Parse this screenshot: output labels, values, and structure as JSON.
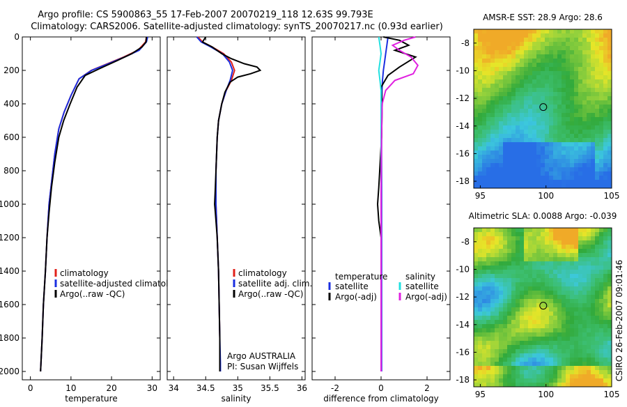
{
  "title_line1": "Argo profile: CS 5900863_55 17-Feb-2007 20070219_118 12.63S 99.793E",
  "title_line2": "Climatology: CARS2006. Satellite-adjusted climatology: synTS_20070217.nc (0.93d earlier)",
  "side_label": "CSIRO 26-Feb-2007 09:01:46",
  "colors": {
    "climatology": "#e0201a",
    "satellite": "#1a2ee0",
    "argo": "#000000",
    "sat_diff": "#22e0e0",
    "argo_sal_diff": "#e020e0"
  },
  "chart_data": [
    {
      "type": "line",
      "xlabel": "temperature",
      "ylabel": "",
      "xlim": [
        -2,
        32
      ],
      "ylim": [
        2050,
        0
      ],
      "xticks": [
        0,
        10,
        20,
        30
      ],
      "yticks": [
        0,
        200,
        400,
        600,
        800,
        1000,
        1200,
        1400,
        1600,
        1800,
        2000
      ],
      "legend": [
        "climatology",
        "satellite-adjusted climatology",
        "Argo(..raw -QC)"
      ],
      "legend_position": "bottom-right",
      "series": [
        {
          "name": "climatology",
          "color": "#e0201a",
          "x": [
            28.6,
            28.4,
            26.5,
            23,
            19,
            15,
            12,
            10,
            8.3,
            7,
            6,
            5.3,
            4.6,
            4.1,
            3.7,
            3.2,
            2.9,
            2.6,
            2.5
          ],
          "y": [
            0,
            30,
            80,
            120,
            160,
            200,
            250,
            350,
            450,
            550,
            700,
            850,
            1000,
            1200,
            1400,
            1600,
            1800,
            1950,
            2000
          ]
        },
        {
          "name": "satellite-adjusted climatology",
          "color": "#1a2ee0",
          "x": [
            28.9,
            28.6,
            26.8,
            23.2,
            19.2,
            15.1,
            12,
            10,
            8.3,
            7,
            6,
            5.3,
            4.6,
            4.1,
            3.7,
            3.2,
            2.9,
            2.6,
            2.5
          ],
          "y": [
            0,
            30,
            80,
            120,
            160,
            200,
            250,
            350,
            450,
            550,
            700,
            850,
            1000,
            1200,
            1400,
            1600,
            1800,
            1950,
            2000
          ]
        },
        {
          "name": "Argo(..raw -QC)",
          "color": "#000000",
          "x": [
            28.6,
            28.5,
            27.5,
            25,
            21.5,
            17,
            13.5,
            11.5,
            9.8,
            8.2,
            7,
            6,
            5.2,
            4.6,
            4.1,
            3.7,
            3.2,
            2.9,
            2.6,
            2.5
          ],
          "y": [
            0,
            30,
            60,
            100,
            140,
            190,
            230,
            300,
            400,
            500,
            600,
            750,
            900,
            1050,
            1200,
            1400,
            1600,
            1800,
            1950,
            2000
          ]
        }
      ]
    },
    {
      "type": "line",
      "xlabel": "salinity",
      "ylabel": "",
      "xlim": [
        33.9,
        36.05
      ],
      "ylim": [
        2050,
        0
      ],
      "xticks": [
        34,
        34.5,
        35,
        35.5,
        36
      ],
      "yticks": [
        0,
        200,
        400,
        600,
        800,
        1000,
        1200,
        1400,
        1600,
        1800,
        2000
      ],
      "legend": [
        "climatology",
        "satellite adj. clim.",
        "Argo(..raw -QC)"
      ],
      "legend_position": "bottom-right",
      "annotation": [
        "Argo AUSTRALIA",
        "PI: Susan Wijffels"
      ],
      "series": [
        {
          "name": "climatology",
          "color": "#e0201a",
          "x": [
            34.38,
            34.45,
            34.6,
            34.78,
            34.9,
            34.95,
            34.9,
            34.82,
            34.75,
            34.7,
            34.68,
            34.66,
            34.66,
            34.67,
            34.68,
            34.7,
            34.71,
            34.72,
            34.72,
            34.72
          ],
          "y": [
            0,
            30,
            60,
            100,
            150,
            200,
            260,
            320,
            400,
            500,
            600,
            800,
            1000,
            1100,
            1200,
            1400,
            1600,
            1800,
            1950,
            2000
          ]
        },
        {
          "name": "satellite adj. clim.",
          "color": "#1a2ee0",
          "x": [
            34.36,
            34.43,
            34.58,
            34.76,
            34.87,
            34.92,
            34.88,
            34.82,
            34.75,
            34.7,
            34.68,
            34.66,
            34.66,
            34.67,
            34.68,
            34.7,
            34.71,
            34.72,
            34.73,
            34.73
          ],
          "y": [
            0,
            30,
            60,
            100,
            150,
            200,
            260,
            320,
            400,
            500,
            600,
            800,
            1000,
            1100,
            1200,
            1400,
            1600,
            1800,
            1950,
            2000
          ]
        },
        {
          "name": "Argo(..raw -QC)",
          "color": "#000000",
          "x": [
            34.5,
            34.45,
            34.6,
            34.75,
            34.9,
            35.1,
            35.3,
            35.35,
            35.2,
            35.0,
            34.88,
            34.8,
            34.75,
            34.7,
            34.68,
            34.66,
            34.65,
            34.64,
            34.65,
            34.66,
            34.68,
            34.7,
            34.71,
            34.72,
            34.72
          ],
          "y": [
            0,
            30,
            60,
            100,
            130,
            160,
            180,
            200,
            220,
            240,
            270,
            330,
            400,
            500,
            600,
            800,
            900,
            1000,
            1050,
            1100,
            1200,
            1400,
            1600,
            1800,
            2000
          ]
        }
      ]
    },
    {
      "type": "line",
      "xlabel": "difference from climatology",
      "ylabel": "",
      "xlim": [
        -3,
        3
      ],
      "ylim": [
        2050,
        0
      ],
      "xticks": [
        -2,
        0,
        2
      ],
      "yticks": [
        0,
        200,
        400,
        600,
        800,
        1000,
        1200,
        1400,
        1600,
        1800,
        2000
      ],
      "legend_groups": [
        {
          "header": "temperature",
          "entries": [
            "satellite",
            "Argo(-adj)"
          ]
        },
        {
          "header": "salinity",
          "entries": [
            "satellite",
            "Argo(-adj)"
          ]
        }
      ],
      "legend_position": "bottom",
      "series": [
        {
          "name": "temperature satellite",
          "color": "#1a2ee0",
          "x": [
            0.3,
            0.25,
            0.2,
            0.15,
            0.1,
            0.06,
            0.04,
            0.03,
            0.02,
            0.02,
            0.02,
            0.02,
            0.02
          ],
          "y": [
            0,
            50,
            100,
            150,
            200,
            260,
            320,
            400,
            600,
            900,
            1300,
            1700,
            2000
          ]
        },
        {
          "name": "temperature Argo(-adj)",
          "color": "#000000",
          "x": [
            0.1,
            0.8,
            1.2,
            0.6,
            1.5,
            0.8,
            0.3,
            0.0,
            0.05,
            0.02,
            -0.1,
            -0.15,
            -0.1,
            0.0,
            0.0
          ],
          "y": [
            0,
            20,
            50,
            80,
            120,
            180,
            230,
            300,
            400,
            600,
            900,
            1000,
            1100,
            1200,
            1300
          ]
        },
        {
          "name": "salinity satellite",
          "color": "#22e0e0",
          "x": [
            -0.1,
            -0.05,
            0.0,
            -0.05,
            -0.1,
            -0.05,
            0.0,
            0.0,
            0.0,
            0.0,
            0.0,
            0.0,
            0.0
          ],
          "y": [
            0,
            50,
            100,
            150,
            200,
            260,
            320,
            400,
            600,
            900,
            1300,
            1700,
            2000
          ]
        },
        {
          "name": "salinity Argo(-adj)",
          "color": "#e020e0",
          "x": [
            1.5,
            1.0,
            0.5,
            0.8,
            1.3,
            1.6,
            1.4,
            0.6,
            0.2,
            0.05,
            0.02,
            0.0,
            0.0,
            0.0,
            0.0
          ],
          "y": [
            0,
            20,
            50,
            80,
            120,
            170,
            220,
            260,
            320,
            400,
            600,
            900,
            1200,
            1600,
            2000
          ]
        }
      ]
    },
    {
      "type": "heatmap",
      "title": "AMSR-E SST: 28.9 Argo: 28.6",
      "xlim": [
        94.5,
        105
      ],
      "ylim": [
        -18.5,
        -7
      ],
      "xticks": [
        95,
        100,
        105
      ],
      "yticks": [
        -8,
        -10,
        -12,
        -14,
        -16,
        -18
      ],
      "marker": {
        "lon": 99.793,
        "lat": -12.63
      }
    },
    {
      "type": "heatmap",
      "title": "Altimetric SLA: 0.0088 Argo: -0.039",
      "xlim": [
        94.5,
        105
      ],
      "ylim": [
        -18.5,
        -7
      ],
      "xticks": [
        95,
        100,
        105
      ],
      "yticks": [
        -8,
        -10,
        -12,
        -14,
        -16,
        -18
      ],
      "marker": {
        "lon": 99.793,
        "lat": -12.63
      }
    }
  ]
}
